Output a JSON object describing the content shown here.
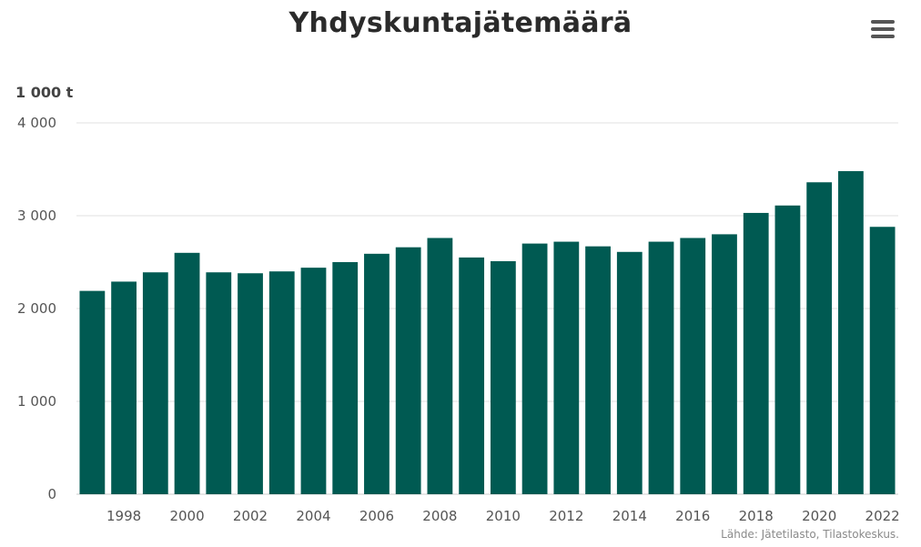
{
  "header": {
    "title": "Yhdyskuntajätemäärä",
    "menu_icon": "hamburger-menu-icon"
  },
  "colors": {
    "bar": "#005a52",
    "grid": "#e0e0e0",
    "axis": "#cccccc"
  },
  "chart_data": {
    "type": "bar",
    "title": "Yhdyskuntajätemäärä",
    "ylabel": "1 000 t",
    "xlabel": "",
    "ylim": [
      0,
      4000
    ],
    "yticks": [
      0,
      1000,
      2000,
      3000,
      4000
    ],
    "ytick_labels": [
      "0",
      "1 000",
      "2 000",
      "3 000",
      "4 000"
    ],
    "categories": [
      "1997",
      "1998",
      "1999",
      "2000",
      "2001",
      "2002",
      "2003",
      "2004",
      "2005",
      "2006",
      "2007",
      "2008",
      "2009",
      "2010",
      "2011",
      "2012",
      "2013",
      "2014",
      "2015",
      "2016",
      "2017",
      "2018",
      "2019",
      "2020",
      "2021",
      "2022"
    ],
    "xtick_labels": [
      "1998",
      "2000",
      "2002",
      "2004",
      "2006",
      "2008",
      "2010",
      "2012",
      "2014",
      "2016",
      "2018",
      "2020",
      "2022"
    ],
    "values": [
      2190,
      2290,
      2390,
      2600,
      2390,
      2380,
      2400,
      2440,
      2500,
      2590,
      2660,
      2760,
      2550,
      2510,
      2700,
      2720,
      2670,
      2610,
      2720,
      2760,
      2800,
      3030,
      3110,
      3360,
      3480,
      2880
    ],
    "grid": true,
    "legend": "none"
  },
  "source": "Lähde: Jätetilasto, Tilastokeskus."
}
